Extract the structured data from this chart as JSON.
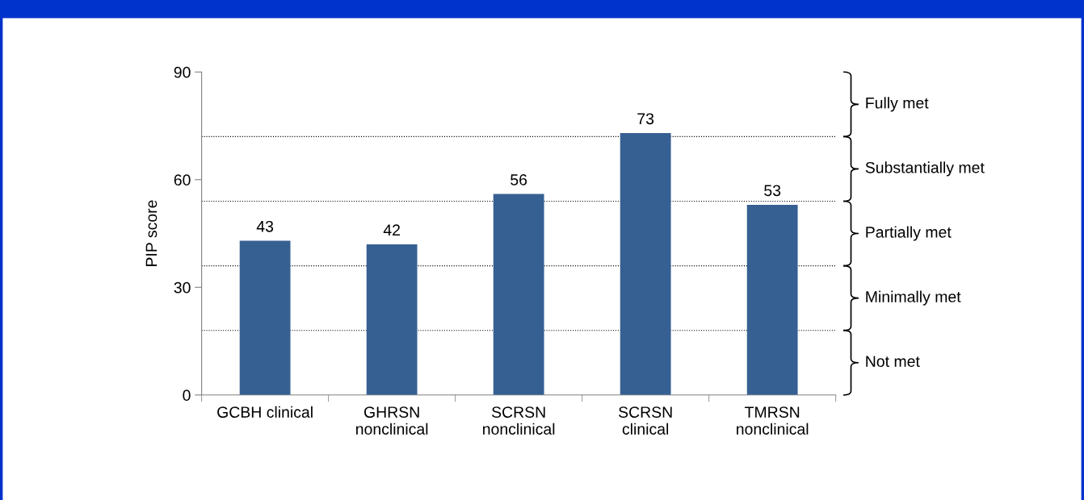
{
  "chart_data": {
    "type": "bar",
    "ylabel": "PIP score",
    "categories": [
      "GCBH clinical",
      "GHRSN\nnonclinical",
      "SCRSN\nnonclinical",
      "SCRSN\nclinical",
      "TMRSN\nnonclinical"
    ],
    "series": [
      {
        "color": "#376092",
        "values": [
          43,
          42,
          56,
          73,
          53
        ]
      }
    ],
    "data_labels": true,
    "ylim": [
      0,
      90
    ],
    "yticks": [
      0,
      30,
      60,
      90
    ],
    "grid": false,
    "ref_lines": [
      {
        "axis": "y",
        "value": 18,
        "line_style": "dotted",
        "color": "#000000"
      },
      {
        "axis": "y",
        "value": 36,
        "line_style": "dotted",
        "color": "#000000"
      },
      {
        "axis": "y",
        "value": 54,
        "line_style": "dotted",
        "color": "#000000"
      },
      {
        "axis": "y",
        "value": 72,
        "line_style": "dotted",
        "color": "#000000"
      }
    ],
    "annotations": [
      "Not met",
      "Minimally met",
      "Partially met",
      "Substantially met",
      "Fully met"
    ]
  }
}
